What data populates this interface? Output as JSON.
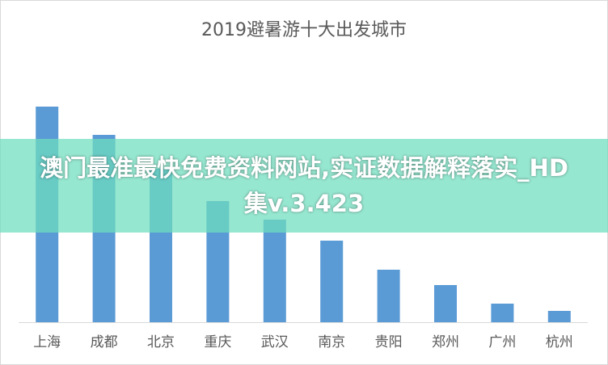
{
  "chart_data": {
    "type": "bar",
    "title": "2019避暑游十大出发城市",
    "categories": [
      "上海",
      "成都",
      "北京",
      "重庆",
      "武汉",
      "南京",
      "贵阳",
      "郑州",
      "广州",
      "杭州"
    ],
    "values": [
      267,
      232,
      190,
      150,
      127,
      101,
      65,
      46,
      23,
      14
    ],
    "color": "#5b9bd5"
  },
  "overlay_text": "澳门最准最快免费资料网站,实证数据解释落实_HD集v.3.423"
}
